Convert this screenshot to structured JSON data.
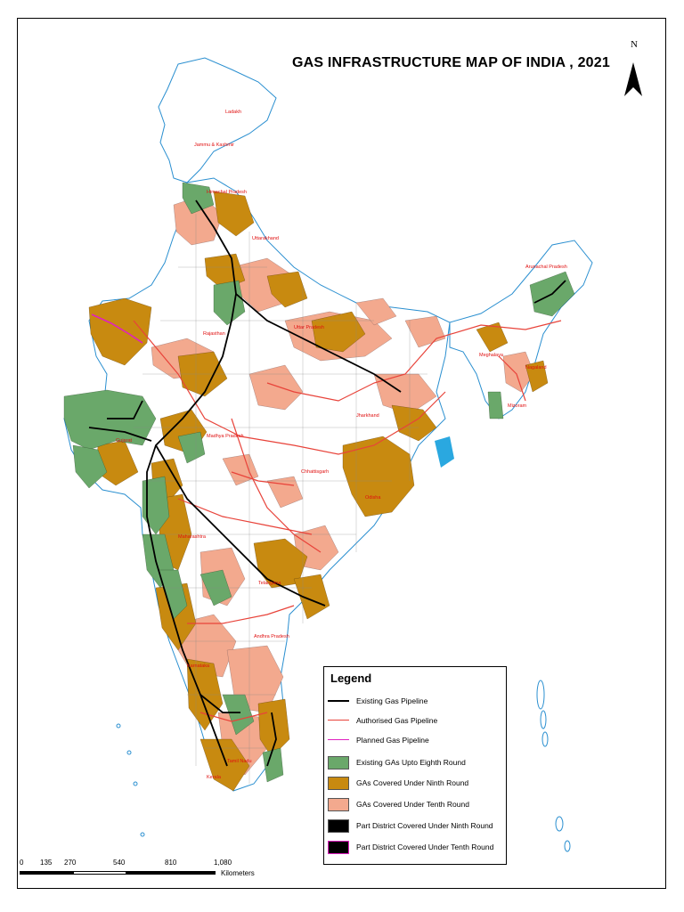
{
  "map": {
    "title": "GAS INFRASTRUCTURE MAP OF INDIA , 2021",
    "north_label": "N",
    "colors": {
      "existing_pipeline": "#000000",
      "authorised_pipeline": "#e8433a",
      "planned_pipeline": "#e020c0",
      "eighth_round": "#6aa86a",
      "ninth_round": "#c88a10",
      "tenth_round": "#f3a98e",
      "boundary": "#2a8fd0"
    },
    "legend": {
      "title": "Legend",
      "items": [
        {
          "label": "Existing Gas Pipeline",
          "kind": "line",
          "color": "#000000"
        },
        {
          "label": "Authorised Gas Pipeline",
          "kind": "line",
          "color": "#e8433a"
        },
        {
          "label": "Planned Gas Pipeline",
          "kind": "line",
          "color": "#e020c0"
        },
        {
          "label": "Existing GAs Upto Eighth Round",
          "kind": "box",
          "color": "#6aa86a"
        },
        {
          "label": "GAs Covered Under Ninth Round",
          "kind": "box",
          "color": "#c88a10"
        },
        {
          "label": "GAs Covered Under Tenth Round",
          "kind": "box",
          "color": "#f3a98e"
        },
        {
          "label": "Part District Covered Under Ninth Round",
          "kind": "dots",
          "color": "#000000"
        },
        {
          "label": "Part District Covered Under Tenth Round",
          "kind": "dots-pink",
          "color": "#000000"
        }
      ]
    },
    "scale": {
      "ticks": [
        "0",
        "135",
        "270",
        "540",
        "810",
        "1,080"
      ],
      "unit": "Kilometers"
    },
    "places": [
      {
        "name": "Ladakh"
      },
      {
        "name": "Jammu & Kashmir"
      },
      {
        "name": "Himachal Pradesh"
      },
      {
        "name": "Uttarakhand"
      },
      {
        "name": "Arunachal Pradesh"
      },
      {
        "name": "Rajasthan"
      },
      {
        "name": "Uttar Pradesh"
      },
      {
        "name": "Meghalaya"
      },
      {
        "name": "Nagaland"
      },
      {
        "name": "Mizoram"
      },
      {
        "name": "Gujarat"
      },
      {
        "name": "Madhya Pradesh"
      },
      {
        "name": "Jharkhand"
      },
      {
        "name": "Chhattisgarh"
      },
      {
        "name": "Odisha"
      },
      {
        "name": "Maharashtra"
      },
      {
        "name": "Telangana"
      },
      {
        "name": "Andhra Pradesh"
      },
      {
        "name": "Karnataka"
      },
      {
        "name": "Tamil Nadu"
      },
      {
        "name": "Kerala"
      }
    ]
  }
}
